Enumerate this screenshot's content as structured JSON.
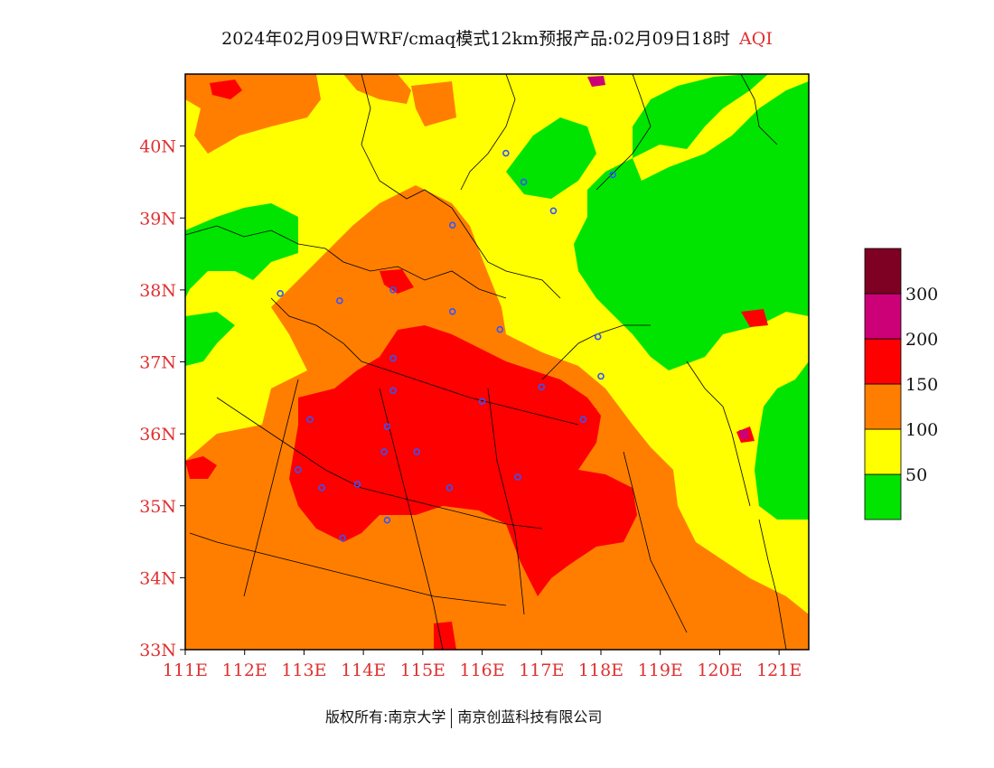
{
  "title": {
    "main": "2024年02月09日WRF/cmaq模式12km预报产品:02月09日18时",
    "variable": "AQI"
  },
  "axes": {
    "lat_labels": [
      "33N",
      "34N",
      "35N",
      "36N",
      "37N",
      "38N",
      "39N",
      "40N"
    ],
    "lat_values": [
      33,
      34,
      35,
      36,
      37,
      38,
      39,
      40
    ],
    "lon_labels": [
      "111E",
      "112E",
      "113E",
      "114E",
      "115E",
      "116E",
      "117E",
      "118E",
      "119E",
      "120E",
      "121E"
    ],
    "lon_values": [
      111,
      112,
      113,
      114,
      115,
      116,
      117,
      118,
      119,
      120,
      121
    ],
    "lon_range": [
      111,
      121.5
    ],
    "lat_range": [
      33,
      41
    ],
    "tick_color": "#e03030"
  },
  "legend": {
    "levels": [
      {
        "label": "",
        "color": "#00e400"
      },
      {
        "label": "50",
        "color": "#ffff00"
      },
      {
        "label": "100",
        "color": "#ff7e00"
      },
      {
        "label": "150",
        "color": "#ff0000"
      },
      {
        "label": "200",
        "color": "#cc0077"
      },
      {
        "label": "300",
        "color": "#7e0023"
      }
    ]
  },
  "footer": {
    "left": "版权所有:南京大学",
    "right": "南京创蓝科技有限公司"
  },
  "stations": [
    [
      116.4,
      39.9
    ],
    [
      117.2,
      39.1
    ],
    [
      118.2,
      39.6
    ],
    [
      116.7,
      39.5
    ],
    [
      115.5,
      38.9
    ],
    [
      114.5,
      38.0
    ],
    [
      113.6,
      37.85
    ],
    [
      112.6,
      37.95
    ],
    [
      115.5,
      37.7
    ],
    [
      116.3,
      37.45
    ],
    [
      114.5,
      37.05
    ],
    [
      114.5,
      36.6
    ],
    [
      114.4,
      36.1
    ],
    [
      113.1,
      36.2
    ],
    [
      112.9,
      35.5
    ],
    [
      113.3,
      35.25
    ],
    [
      113.9,
      35.3
    ],
    [
      114.35,
      35.75
    ],
    [
      114.9,
      35.75
    ],
    [
      115.45,
      35.25
    ],
    [
      116.0,
      36.45
    ],
    [
      117.0,
      36.65
    ],
    [
      117.95,
      37.35
    ],
    [
      118.0,
      36.8
    ],
    [
      116.6,
      35.4
    ],
    [
      114.4,
      34.8
    ],
    [
      113.65,
      34.55
    ],
    [
      117.7,
      36.2
    ]
  ]
}
